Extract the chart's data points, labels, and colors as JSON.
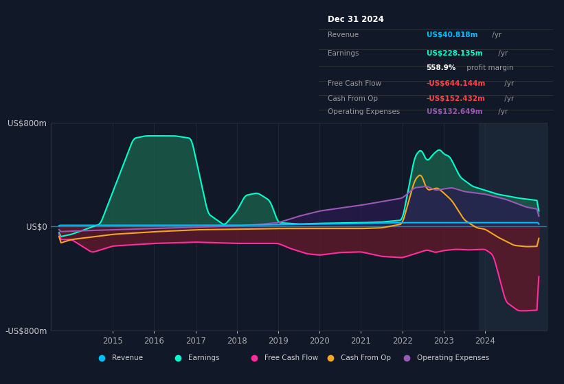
{
  "bg_color": "#111827",
  "plot_bg": "#111827",
  "ylabel_top": "US$800m",
  "ylabel_zero": "US$0",
  "ylabel_bottom": "-US$800m",
  "ylim": [
    -800,
    800
  ],
  "xlim": [
    2013.5,
    2025.5
  ],
  "xticks": [
    2015,
    2016,
    2017,
    2018,
    2019,
    2020,
    2021,
    2022,
    2023,
    2024
  ],
  "grid_color": "#2a2f3a",
  "revenue_color": "#00bfff",
  "earnings_color": "#00ffcc",
  "earnings_fill_pos": "#1a5c4a",
  "fcf_color": "#ff2d9e",
  "fcf_fill_neg": "#5c1a2a",
  "cashfromop_color": "#f5a623",
  "opex_color": "#9b59b6",
  "opex_fill_pos": "#2a1a50",
  "zero_line_color": "#4488aa",
  "highlight_bg": "#1a2535",
  "legend_items": [
    {
      "label": "Revenue",
      "color": "#00bfff"
    },
    {
      "label": "Earnings",
      "color": "#00ffcc"
    },
    {
      "label": "Free Cash Flow",
      "color": "#ff2d9e"
    },
    {
      "label": "Cash From Op",
      "color": "#f5a623"
    },
    {
      "label": "Operating Expenses",
      "color": "#9b59b6"
    }
  ],
  "info_box_date": "Dec 31 2024",
  "info_rows": [
    {
      "label": "Revenue",
      "value": "US$40.818m",
      "suffix": " /yr",
      "vcolor": "#00bfff"
    },
    {
      "label": "Earnings",
      "value": "US$228.135m",
      "suffix": " /yr",
      "vcolor": "#00ffcc"
    },
    {
      "label": "",
      "value": "558.9%",
      "suffix": " profit margin",
      "vcolor": "#ffffff"
    },
    {
      "label": "Free Cash Flow",
      "value": "-US$644.144m",
      "suffix": " /yr",
      "vcolor": "#ff4444"
    },
    {
      "label": "Cash From Op",
      "value": "-US$152.432m",
      "suffix": " /yr",
      "vcolor": "#ff4444"
    },
    {
      "label": "Operating Expenses",
      "value": "US$132.649m",
      "suffix": " /yr",
      "vcolor": "#9b59b6"
    }
  ]
}
